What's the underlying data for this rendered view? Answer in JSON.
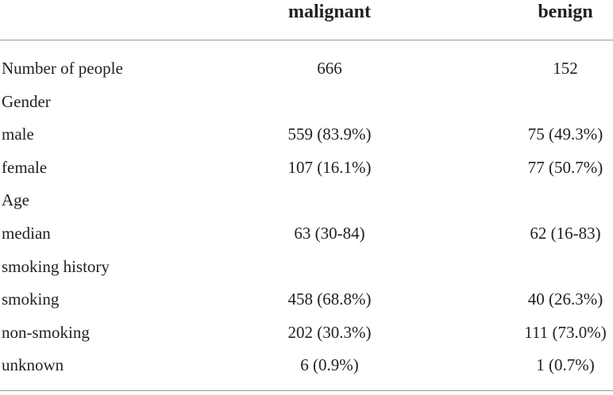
{
  "table": {
    "columns": [
      "malignant",
      "benign"
    ],
    "rows": [
      {
        "label": "Number of people",
        "values": [
          "666",
          "152"
        ]
      },
      {
        "label": "Gender"
      },
      {
        "label": "male",
        "values": [
          "559 (83.9%)",
          "75 (49.3%)"
        ]
      },
      {
        "label": "female",
        "values": [
          "107 (16.1%)",
          "77 (50.7%)"
        ]
      },
      {
        "label": "Age"
      },
      {
        "label": "median",
        "values": [
          "63 (30-84)",
          "62 (16-83)"
        ]
      },
      {
        "label": "smoking history"
      },
      {
        "label": "smoking",
        "values": [
          "458 (68.8%)",
          "40 (26.3%)"
        ]
      },
      {
        "label": "non-smoking",
        "values": [
          "202 (30.3%)",
          "111 (73.0%)"
        ]
      },
      {
        "label": "unknown",
        "values": [
          "6 (0.9%)",
          "1 (0.7%)"
        ]
      }
    ]
  }
}
